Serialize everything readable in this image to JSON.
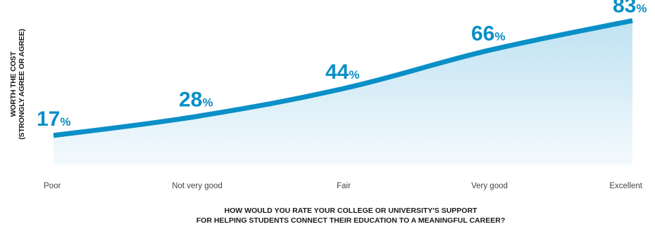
{
  "chart_data": {
    "type": "area",
    "categories": [
      "Poor",
      "Not very good",
      "Fair",
      "Very good",
      "Excellent"
    ],
    "values": [
      17,
      28,
      44,
      66,
      83
    ],
    "value_suffix": "%",
    "title": "",
    "ylabel_lines": [
      "WORTH THE COST",
      "(STRONGLY AGREE OR AGREE)"
    ],
    "xlabel_lines": [
      "HOW WOULD YOU RATE YOUR COLLEGE OR UNIVERSITY'S SUPPORT",
      "FOR HELPING STUDENTS CONNECT THEIR EDUCATION TO A MEANINGFUL CAREER?"
    ],
    "ylim": [
      0,
      90
    ],
    "grid": false,
    "legend": "none",
    "colors": {
      "line": "#0a8fc7",
      "fill_top": "#bfe2f2",
      "fill_bottom": "#f4fafd",
      "label": "#0a8fc7",
      "baseline": "#cccccc"
    }
  }
}
